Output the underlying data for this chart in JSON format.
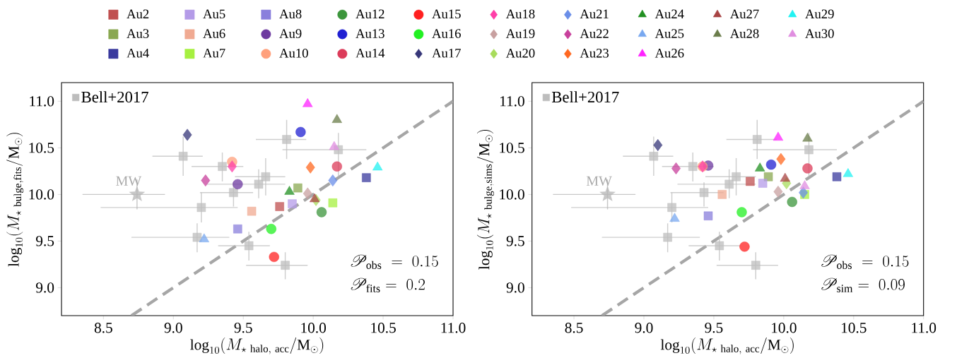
{
  "chart_data": [
    {
      "type": "scatter",
      "xlabel": "\\mathrm{log}_{10}(M_{\\star\\ \\mathrm{halo,\\ acc}}/\\mathrm{M}_{\\odot})",
      "ylabel": "\\mathrm{log}_{10}(M_{\\star\\ \\mathrm{bulge,fits}}/\\mathrm{M}_{\\odot})",
      "xlim": [
        8.2,
        11.0
      ],
      "ylim": [
        8.7,
        11.2
      ],
      "xticks": [
        {
          "value": 8.5,
          "label": "8.5"
        },
        {
          "value": 9.0,
          "label": "9.0"
        },
        {
          "value": 9.5,
          "label": "9.5"
        },
        {
          "value": 10.0,
          "label": "10.0"
        },
        {
          "value": 10.5,
          "label": "10.5"
        },
        {
          "value": 11.0,
          "label": "11.0"
        }
      ],
      "yticks": [
        {
          "value": 9.0,
          "label": "9.0"
        },
        {
          "value": 9.5,
          "label": "9.5"
        },
        {
          "value": 10.0,
          "label": "10.0"
        },
        {
          "value": 10.5,
          "label": "10.5"
        },
        {
          "value": 11.0,
          "label": "11.0"
        }
      ],
      "legend": "top",
      "annotations": [
        "\\mathscr{P}_{\\mathrm{obs}}\\;=\\;0.15",
        "\\mathscr{P}_{\\mathrm{fits}}=\\;0.2",
        {
          "text": "MW",
          "x": 8.74,
          "y": 10.0
        }
      ],
      "series": [
        {
          "type": "line",
          "color": "#a6a6a6",
          "line_style": "dashed",
          "marker": "none",
          "x": [
            8.7,
            11.0
          ],
          "values": [
            8.7,
            11.0
          ]
        },
        {
          "name": "Bell+2017",
          "color": "#bdbdbd",
          "marker": "square",
          "x": [
            9.07,
            9.35,
            9.66,
            9.61,
            9.43,
            9.2,
            9.81,
            10.18,
            9.17,
            9.54,
            9.8
          ],
          "values": [
            10.41,
            10.3,
            10.19,
            10.11,
            10.02,
            9.86,
            10.59,
            10.48,
            9.54,
            9.45,
            9.24
          ],
          "xerrors": [
            [
              8.85,
              9.21
            ],
            [
              9.13,
              9.5
            ],
            [
              9.44,
              9.8
            ],
            [
              9.24,
              9.8
            ],
            [
              9.19,
              9.57
            ],
            [
              8.48,
              9.46
            ],
            [
              9.59,
              9.95
            ],
            [
              9.78,
              10.38
            ],
            [
              8.7,
              9.4
            ],
            [
              9.32,
              9.69
            ],
            [
              9.52,
              9.96
            ]
          ],
          "errors": [
            [
              10.2,
              10.62
            ],
            [
              10.14,
              10.45
            ],
            [
              9.99,
              10.39
            ],
            [
              9.96,
              10.27
            ],
            [
              9.87,
              10.13
            ],
            [
              9.7,
              10.02
            ],
            [
              10.38,
              10.8
            ],
            [
              10.19,
              10.66
            ],
            [
              9.38,
              9.69
            ],
            [
              9.29,
              9.6
            ],
            [
              9.09,
              9.38
            ]
          ]
        },
        {
          "color": "#b5b5b5",
          "marker": "star",
          "x": [
            8.74
          ],
          "values": [
            10.0
          ],
          "xerrors": [
            [
              8.35,
              8.94
            ]
          ],
          "errors": [
            [
              9.84,
              10.16
            ]
          ]
        },
        {
          "name": "Au2",
          "color": "#c05050",
          "marker": "square",
          "x": [
            9.76
          ],
          "values": [
            9.87
          ]
        },
        {
          "name": "Au3",
          "color": "#8aa852",
          "marker": "square",
          "x": [
            9.89
          ],
          "values": [
            10.07
          ]
        },
        {
          "name": "Au4",
          "color": "#3a3a9e",
          "marker": "square",
          "x": [
            10.38
          ],
          "values": [
            10.18
          ]
        },
        {
          "name": "Au5",
          "color": "#b49be8",
          "marker": "square",
          "x": [
            9.85
          ],
          "values": [
            9.9
          ]
        },
        {
          "name": "Au6",
          "color": "#f0aa92",
          "marker": "square",
          "x": [
            9.56
          ],
          "values": [
            9.82
          ]
        },
        {
          "name": "Au7",
          "color": "#a6f040",
          "marker": "square",
          "x": [
            10.14
          ],
          "values": [
            9.91
          ]
        },
        {
          "name": "Au8",
          "color": "#8a7fdc",
          "marker": "square",
          "x": [
            9.46
          ],
          "values": [
            9.63
          ]
        },
        {
          "name": "Au9",
          "color": "#6e3aa0",
          "marker": "circle",
          "x": [
            9.46
          ],
          "values": [
            10.11
          ]
        },
        {
          "name": "Au10",
          "color": "#ffa07c",
          "marker": "circle",
          "x": [
            9.42
          ],
          "values": [
            10.35
          ]
        },
        {
          "name": "Au12",
          "color": "#3c963c",
          "marker": "circle",
          "x": [
            10.06
          ],
          "values": [
            9.81
          ]
        },
        {
          "name": "Au13",
          "color": "#2020d2",
          "marker": "circle",
          "x": [
            9.91
          ],
          "values": [
            10.67
          ]
        },
        {
          "name": "Au14",
          "color": "#dc3c5a",
          "marker": "circle",
          "x": [
            10.17
          ],
          "values": [
            10.3
          ]
        },
        {
          "name": "Au15",
          "color": "#ff2020",
          "marker": "circle",
          "x": [
            9.72
          ],
          "values": [
            9.33
          ]
        },
        {
          "name": "Au16",
          "color": "#22f022",
          "marker": "circle",
          "x": [
            9.7
          ],
          "values": [
            9.63
          ]
        },
        {
          "name": "Au17",
          "color": "#363678",
          "marker": "diamond",
          "x": [
            9.1
          ],
          "values": [
            10.64
          ]
        },
        {
          "name": "Au18",
          "color": "#ff3fa8",
          "marker": "diamond",
          "x": [
            9.42
          ],
          "values": [
            10.3
          ]
        },
        {
          "name": "Au19",
          "color": "#c8a0a0",
          "marker": "diamond",
          "x": [
            9.96
          ],
          "values": [
            10.01
          ]
        },
        {
          "name": "Au20",
          "color": "#a8dc5c",
          "marker": "diamond",
          "x": [
            10.02
          ],
          "values": [
            9.94
          ]
        },
        {
          "name": "Au21",
          "color": "#6a8ee8",
          "marker": "diamond",
          "x": [
            10.14
          ],
          "values": [
            10.15
          ]
        },
        {
          "name": "Au22",
          "color": "#c8409c",
          "marker": "diamond",
          "x": [
            9.23
          ],
          "values": [
            10.15
          ]
        },
        {
          "name": "Au23",
          "color": "#ff6820",
          "marker": "diamond",
          "x": [
            9.98
          ],
          "values": [
            10.29
          ]
        },
        {
          "name": "Au24",
          "color": "#229022",
          "marker": "triangle",
          "x": [
            9.83
          ],
          "values": [
            10.03
          ]
        },
        {
          "name": "Au25",
          "color": "#78a8f0",
          "marker": "triangle",
          "x": [
            9.22
          ],
          "values": [
            9.52
          ]
        },
        {
          "name": "Au26",
          "color": "#ff22ff",
          "marker": "triangle",
          "x": [
            9.96
          ],
          "values": [
            10.97
          ]
        },
        {
          "name": "Au27",
          "color": "#a84444",
          "marker": "triangle",
          "x": [
            10.01
          ],
          "values": [
            9.95
          ]
        },
        {
          "name": "Au28",
          "color": "#6a7c4a",
          "marker": "triangle",
          "x": [
            10.17
          ],
          "values": [
            10.8
          ]
        },
        {
          "name": "Au29",
          "color": "#22f2f2",
          "marker": "triangle",
          "x": [
            10.46
          ],
          "values": [
            10.29
          ]
        },
        {
          "name": "Au30",
          "color": "#e08ee0",
          "marker": "triangle",
          "x": [
            10.15
          ],
          "values": [
            10.51
          ]
        }
      ]
    },
    {
      "type": "scatter",
      "xlabel": "\\mathrm{log}_{10}(M_{\\star\\ \\mathrm{halo,\\ acc}}/\\mathrm{M}_{\\odot})",
      "ylabel": "\\mathrm{log}_{10}(M_{\\star\\ \\mathrm{bulge,sims}}/\\mathrm{M}_{\\odot})",
      "xlim": [
        8.2,
        11.0
      ],
      "ylim": [
        8.7,
        11.2
      ],
      "xticks": [
        {
          "value": 8.5,
          "label": "8.5"
        },
        {
          "value": 9.0,
          "label": "9.0"
        },
        {
          "value": 9.5,
          "label": "9.5"
        },
        {
          "value": 10.0,
          "label": "10.0"
        },
        {
          "value": 10.5,
          "label": "10.5"
        },
        {
          "value": 11.0,
          "label": "11.0"
        }
      ],
      "yticks": [
        {
          "value": 9.0,
          "label": "9.0"
        },
        {
          "value": 9.5,
          "label": "9.5"
        },
        {
          "value": 10.0,
          "label": "10.0"
        },
        {
          "value": 10.5,
          "label": "10.5"
        },
        {
          "value": 11.0,
          "label": "11.0"
        }
      ],
      "legend": "top left",
      "annotations": [
        "\\mathscr{P}_{\\mathrm{obs}}\\;=\\;0.15",
        "\\mathscr{P}_{\\mathrm{sim}}=\\;0.09",
        {
          "text": "MW",
          "x": 8.74,
          "y": 10.0
        }
      ],
      "series": [
        {
          "type": "line",
          "color": "#a6a6a6",
          "line_style": "dashed",
          "marker": "none",
          "x": [
            8.7,
            11.0
          ],
          "values": [
            8.7,
            11.0
          ]
        },
        {
          "name": "Bell+2017",
          "color": "#bdbdbd",
          "marker": "square",
          "x": [
            9.07,
            9.35,
            9.66,
            9.61,
            9.43,
            9.2,
            9.81,
            10.18,
            9.17,
            9.54,
            9.8
          ],
          "values": [
            10.41,
            10.3,
            10.19,
            10.11,
            10.02,
            9.86,
            10.59,
            10.48,
            9.54,
            9.45,
            9.24
          ],
          "xerrors": [
            [
              8.85,
              9.21
            ],
            [
              9.13,
              9.5
            ],
            [
              9.44,
              9.8
            ],
            [
              9.24,
              9.8
            ],
            [
              9.19,
              9.57
            ],
            [
              8.48,
              9.46
            ],
            [
              9.59,
              9.95
            ],
            [
              9.78,
              10.38
            ],
            [
              8.7,
              9.4
            ],
            [
              9.32,
              9.69
            ],
            [
              9.52,
              9.96
            ]
          ],
          "errors": [
            [
              10.2,
              10.62
            ],
            [
              10.14,
              10.45
            ],
            [
              9.99,
              10.39
            ],
            [
              9.96,
              10.27
            ],
            [
              9.87,
              10.13
            ],
            [
              9.7,
              10.02
            ],
            [
              10.38,
              10.8
            ],
            [
              10.19,
              10.66
            ],
            [
              9.38,
              9.69
            ],
            [
              9.29,
              9.6
            ],
            [
              9.09,
              9.38
            ]
          ]
        },
        {
          "color": "#b5b5b5",
          "marker": "star",
          "x": [
            8.74
          ],
          "values": [
            10.0
          ],
          "xerrors": [
            [
              8.35,
              8.94
            ]
          ],
          "errors": [
            [
              9.84,
              10.16
            ]
          ]
        },
        {
          "color": "#c05050",
          "marker": "square",
          "x": [
            9.76
          ],
          "values": [
            10.14
          ]
        },
        {
          "color": "#8aa852",
          "marker": "square",
          "x": [
            9.89
          ],
          "values": [
            10.19
          ]
        },
        {
          "color": "#3a3a9e",
          "marker": "square",
          "x": [
            10.38
          ],
          "values": [
            10.19
          ]
        },
        {
          "color": "#b49be8",
          "marker": "square",
          "x": [
            9.85
          ],
          "values": [
            10.12
          ]
        },
        {
          "color": "#f0aa92",
          "marker": "square",
          "x": [
            9.56
          ],
          "values": [
            10.0
          ]
        },
        {
          "color": "#a6f040",
          "marker": "square",
          "x": [
            10.15
          ],
          "values": [
            10.0
          ]
        },
        {
          "color": "#8a7fdc",
          "marker": "square",
          "x": [
            9.46
          ],
          "values": [
            9.77
          ]
        },
        {
          "color": "#6e3aa0",
          "marker": "circle",
          "x": [
            9.46
          ],
          "values": [
            10.31
          ]
        },
        {
          "color": "#ffa07c",
          "marker": "circle",
          "x": [
            9.42
          ],
          "values": [
            10.3
          ]
        },
        {
          "color": "#3c963c",
          "marker": "circle",
          "x": [
            10.06
          ],
          "values": [
            9.92
          ]
        },
        {
          "color": "#2020d2",
          "marker": "circle",
          "x": [
            9.91
          ],
          "values": [
            10.32
          ]
        },
        {
          "color": "#dc3c5a",
          "marker": "circle",
          "x": [
            10.17
          ],
          "values": [
            10.28
          ]
        },
        {
          "color": "#ff2020",
          "marker": "circle",
          "x": [
            9.72
          ],
          "values": [
            9.44
          ]
        },
        {
          "color": "#22f022",
          "marker": "circle",
          "x": [
            9.7
          ],
          "values": [
            9.81
          ]
        },
        {
          "color": "#363678",
          "marker": "diamond",
          "x": [
            9.1
          ],
          "values": [
            10.53
          ]
        },
        {
          "color": "#ff3fa8",
          "marker": "diamond",
          "x": [
            9.42
          ],
          "values": [
            10.3
          ]
        },
        {
          "color": "#c8a0a0",
          "marker": "diamond",
          "x": [
            9.96
          ],
          "values": [
            10.03
          ]
        },
        {
          "color": "#a8dc5c",
          "marker": "diamond",
          "x": [
            10.02
          ],
          "values": [
            10.12
          ]
        },
        {
          "color": "#6a8ee8",
          "marker": "diamond",
          "x": [
            10.14
          ],
          "values": [
            10.02
          ]
        },
        {
          "color": "#c8409c",
          "marker": "diamond",
          "x": [
            9.23
          ],
          "values": [
            10.28
          ]
        },
        {
          "color": "#ff6820",
          "marker": "diamond",
          "x": [
            9.98
          ],
          "values": [
            10.38
          ]
        },
        {
          "color": "#229022",
          "marker": "triangle",
          "x": [
            9.83
          ],
          "values": [
            10.28
          ]
        },
        {
          "color": "#78a8f0",
          "marker": "triangle",
          "x": [
            9.22
          ],
          "values": [
            9.74
          ]
        },
        {
          "color": "#ff22ff",
          "marker": "triangle",
          "x": [
            9.96
          ],
          "values": [
            10.61
          ]
        },
        {
          "color": "#a84444",
          "marker": "triangle",
          "x": [
            10.01
          ],
          "values": [
            10.17
          ]
        },
        {
          "color": "#6a7c4a",
          "marker": "triangle",
          "x": [
            10.17
          ],
          "values": [
            10.6
          ]
        },
        {
          "color": "#22f2f2",
          "marker": "triangle",
          "x": [
            10.46
          ],
          "values": [
            10.22
          ]
        },
        {
          "color": "#e08ee0",
          "marker": "triangle",
          "x": [
            10.15
          ],
          "values": [
            10.09
          ]
        }
      ]
    }
  ]
}
